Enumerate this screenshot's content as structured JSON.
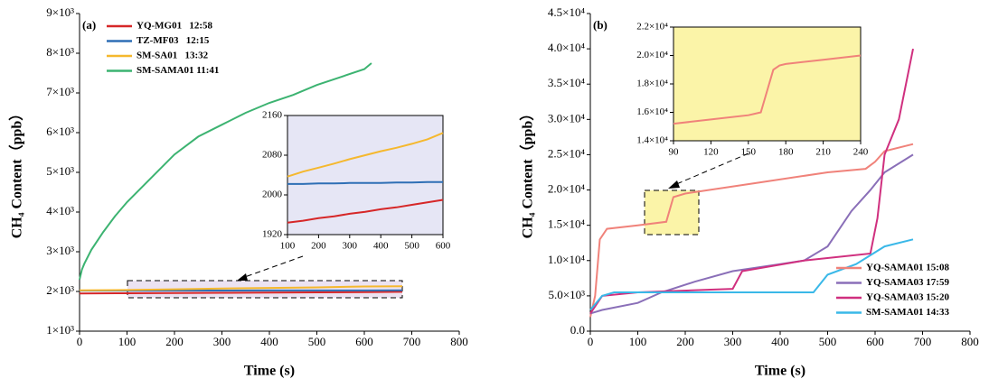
{
  "chart_data": [
    {
      "type": "line",
      "panel_label": "(a)",
      "xlabel": "Time (s)",
      "ylabel": "CH₄ Content（ppb）",
      "xlim": [
        0,
        800
      ],
      "xticks": [
        0,
        100,
        200,
        300,
        400,
        500,
        600,
        700,
        800
      ],
      "ylim": [
        1000,
        9000
      ],
      "yticks": [
        {
          "value": 1000,
          "label": "1×10³"
        },
        {
          "value": 2000,
          "label": "2×10³"
        },
        {
          "value": 3000,
          "label": "3×10³"
        },
        {
          "value": 4000,
          "label": "4×10³"
        },
        {
          "value": 5000,
          "label": "5×10³"
        },
        {
          "value": 6000,
          "label": "6×10³"
        },
        {
          "value": 7000,
          "label": "7×10³"
        },
        {
          "value": 8000,
          "label": "8×10³"
        },
        {
          "value": 9000,
          "label": "9×10³"
        }
      ],
      "legend": "upper left",
      "series": [
        {
          "name": "YQ-MG01   12:58",
          "color": "#d62728",
          "x": [
            0,
            100,
            200,
            300,
            400,
            500,
            600,
            680
          ],
          "values": [
            1950,
            1955,
            1960,
            1966,
            1972,
            1978,
            1985,
            1990
          ]
        },
        {
          "name": "TZ-MF03   12:15",
          "color": "#2e6fb5",
          "x": [
            0,
            100,
            200,
            300,
            400,
            500,
            600,
            680
          ],
          "values": [
            2020,
            2021,
            2022,
            2023,
            2024,
            2025,
            2026,
            2027
          ]
        },
        {
          "name": "SM-SA01   13:32",
          "color": "#f5b82e",
          "x": [
            0,
            100,
            200,
            300,
            400,
            500,
            600,
            680
          ],
          "values": [
            2030,
            2037,
            2055,
            2072,
            2088,
            2103,
            2125,
            2130
          ]
        },
        {
          "name": "SM-SAMA01 11:41",
          "color": "#3cb371",
          "x": [
            0,
            5,
            10,
            25,
            50,
            75,
            100,
            150,
            200,
            250,
            300,
            350,
            400,
            450,
            500,
            550,
            600,
            615
          ],
          "values": [
            2300,
            2550,
            2700,
            3050,
            3500,
            3900,
            4250,
            4850,
            5450,
            5900,
            6200,
            6500,
            6750,
            6950,
            7200,
            7400,
            7600,
            7750
          ]
        }
      ]
    },
    {
      "type": "line",
      "xlim": [
        100,
        600
      ],
      "xticks": [
        100,
        200,
        300,
        400,
        500,
        600
      ],
      "ylim": [
        1920,
        2160
      ],
      "yticks": [
        1920,
        2000,
        2080,
        2160
      ],
      "series": [
        {
          "color": "#d62728",
          "x": [
            100,
            150,
            200,
            250,
            300,
            350,
            400,
            450,
            500,
            550,
            600
          ],
          "values": [
            1944,
            1948,
            1953,
            1957,
            1962,
            1966,
            1971,
            1975,
            1980,
            1985,
            1990
          ]
        },
        {
          "color": "#2e6fb5",
          "x": [
            100,
            150,
            200,
            250,
            300,
            350,
            400,
            450,
            500,
            550,
            600
          ],
          "values": [
            2022,
            2022,
            2023,
            2023,
            2024,
            2024,
            2024,
            2025,
            2025,
            2026,
            2026
          ]
        },
        {
          "color": "#f5b82e",
          "x": [
            100,
            150,
            200,
            250,
            300,
            350,
            400,
            450,
            500,
            550,
            600
          ],
          "values": [
            2037,
            2047,
            2055,
            2063,
            2072,
            2080,
            2088,
            2095,
            2103,
            2112,
            2125
          ]
        }
      ]
    },
    {
      "type": "line",
      "panel_label": "(b)",
      "xlabel": "Time (s)",
      "ylabel": "CH₄ Content（ppb）",
      "xlim": [
        0,
        800
      ],
      "xticks": [
        0,
        100,
        200,
        300,
        400,
        500,
        600,
        700,
        800
      ],
      "ylim": [
        0,
        45000
      ],
      "yticks": [
        {
          "value": 0,
          "label": "0.0"
        },
        {
          "value": 5000,
          "label": "5.0×10³"
        },
        {
          "value": 10000,
          "label": "1.0×10⁴"
        },
        {
          "value": 15000,
          "label": "1.5×10⁴"
        },
        {
          "value": 20000,
          "label": "2.0×10⁴"
        },
        {
          "value": 25000,
          "label": "2.5×10⁴"
        },
        {
          "value": 30000,
          "label": "3.0×10⁴"
        },
        {
          "value": 35000,
          "label": "3.5×10⁴"
        },
        {
          "value": 40000,
          "label": "4.0×10⁴"
        },
        {
          "value": 45000,
          "label": "4.5×10⁴"
        }
      ],
      "legend": "lower right",
      "series": [
        {
          "name": "YQ-SAMA01 15:08",
          "color": "#f0827a",
          "x": [
            0,
            10,
            20,
            35,
            100,
            160,
            175,
            200,
            350,
            500,
            580,
            600,
            620,
            680
          ],
          "values": [
            2000,
            5000,
            13000,
            14500,
            15000,
            15500,
            19000,
            19500,
            21000,
            22500,
            23000,
            24000,
            25500,
            26500
          ]
        },
        {
          "name": "YQ-SAMA03 17:59",
          "color": "#8a6fb8",
          "x": [
            0,
            25,
            100,
            150,
            220,
            300,
            400,
            450,
            500,
            550,
            590,
            620,
            680
          ],
          "values": [
            2500,
            3000,
            4000,
            5500,
            7000,
            8500,
            9500,
            10000,
            12000,
            17000,
            20000,
            22500,
            25000
          ]
        },
        {
          "name": "YQ-SAMA03 15:20",
          "color": "#d0307f",
          "x": [
            0,
            25,
            100,
            300,
            320,
            450,
            590,
            605,
            620,
            650,
            680
          ],
          "values": [
            2500,
            5000,
            5500,
            6000,
            8500,
            10000,
            11000,
            16000,
            25000,
            30000,
            40000
          ]
        },
        {
          "name": "SM-SAMA01 14:33",
          "color": "#3ab8e8",
          "x": [
            0,
            25,
            50,
            470,
            500,
            560,
            620,
            680
          ],
          "values": [
            3000,
            5000,
            5500,
            5500,
            8000,
            9500,
            12000,
            13000
          ]
        }
      ]
    },
    {
      "type": "line",
      "xlim": [
        90,
        240
      ],
      "xticks": [
        90,
        120,
        150,
        180,
        210,
        240
      ],
      "ylim": [
        14000,
        22000
      ],
      "yticks": [
        {
          "value": 14000,
          "label": "1.4×10⁴"
        },
        {
          "value": 16000,
          "label": "1.6×10⁴"
        },
        {
          "value": 18000,
          "label": "1.8×10⁴"
        },
        {
          "value": 20000,
          "label": "2.0×10⁴"
        },
        {
          "value": 22000,
          "label": "2.2×10⁴"
        }
      ],
      "series": [
        {
          "color": "#f0827a",
          "x": [
            90,
            120,
            150,
            160,
            165,
            170,
            175,
            180,
            210,
            240
          ],
          "values": [
            15200,
            15500,
            15800,
            16000,
            17500,
            19000,
            19300,
            19400,
            19700,
            20000
          ]
        }
      ]
    }
  ]
}
